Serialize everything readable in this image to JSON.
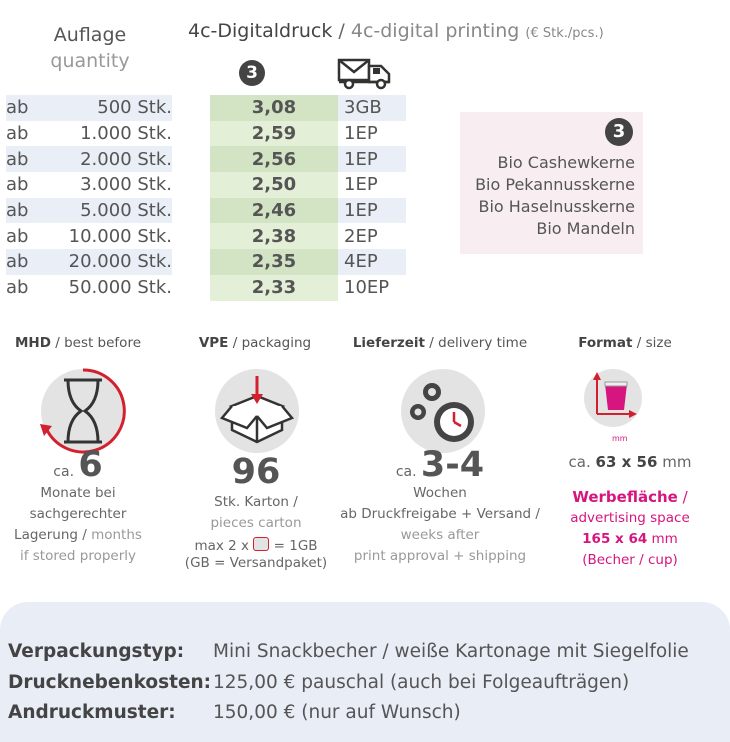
{
  "header": {
    "quantity_de": "Auflage",
    "quantity_en": "quantity",
    "title_de": "4c-Digitaldruck",
    "separator": " / ",
    "title_en": "4c-digital printing",
    "unit": "(€ Stk./pcs.)",
    "col_badge": "3",
    "shipping_icon": "shipping-truck-icon"
  },
  "prices": [
    {
      "prefix": "ab",
      "qty": "500 Stk.",
      "price": "3,08",
      "ship": "3GB"
    },
    {
      "prefix": "ab",
      "qty": "1.000 Stk.",
      "price": "2,59",
      "ship": "1EP"
    },
    {
      "prefix": "ab",
      "qty": "2.000 Stk.",
      "price": "2,56",
      "ship": "1EP"
    },
    {
      "prefix": "ab",
      "qty": "3.000 Stk.",
      "price": "2,50",
      "ship": "1EP"
    },
    {
      "prefix": "ab",
      "qty": "5.000 Stk.",
      "price": "2,46",
      "ship": "1EP"
    },
    {
      "prefix": "ab",
      "qty": "10.000 Stk.",
      "price": "2,38",
      "ship": "2EP"
    },
    {
      "prefix": "ab",
      "qty": "20.000 Stk.",
      "price": "2,35",
      "ship": "4EP"
    },
    {
      "prefix": "ab",
      "qty": "50.000 Stk.",
      "price": "2,33",
      "ship": "10EP"
    }
  ],
  "variant": {
    "badge": "3",
    "items": [
      "Bio Cashewkerne",
      "Bio Pekannusskerne",
      "Bio Haselnusskerne",
      "Bio Mandeln"
    ]
  },
  "mhd": {
    "label_de": "MHD",
    "label_en": "best before",
    "prefix": "ca.",
    "value": "6",
    "line1": "Monate bei",
    "line2": "sachgerechter",
    "line3_de": "Lagerung",
    "line3_en": "months",
    "line4": "if stored properly"
  },
  "vpe": {
    "label_de": "VPE",
    "label_en": "packaging",
    "value": "96",
    "line1": "Stk. Karton /",
    "line2": "pieces carton",
    "line3a": "max 2 x",
    "line3b": "= 1GB",
    "line4": "(GB = Versandpaket)"
  },
  "delivery": {
    "label_de": "Lieferzeit",
    "label_en": "delivery time",
    "prefix": "ca.",
    "value": "3-4",
    "line1": "Wochen",
    "line2": "ab Druckfreigabe + Versand /",
    "line3": "weeks after",
    "line4": "print approval + shipping"
  },
  "format": {
    "label_de": "Format",
    "label_en": "size",
    "size_prefix": "ca.",
    "size_value": "63 x 56",
    "size_unit": "mm",
    "mm_label": "mm",
    "adv_de": "Werbefläche",
    "adv_sep": " /",
    "adv_en": "advertising space",
    "adv_value": "165 x 64",
    "adv_unit": "mm",
    "adv_note": "(Becher / cup)"
  },
  "details": [
    {
      "key": "Verpackungstyp:",
      "value": "Mini Snackbecher / weiße Kartonage mit Siegelfolie"
    },
    {
      "key": "Drucknebenkosten:",
      "value": "125,00 € pauschal (auch bei Folgeaufträgen)"
    },
    {
      "key": "Andruckmuster:",
      "value": "150,00 € (nur auf Wunsch)"
    }
  ],
  "colors": {
    "accent_pink": "#d6157f",
    "price_green": "#d3e4c4",
    "row_blue": "#e9eef7",
    "red": "#d2202f"
  }
}
